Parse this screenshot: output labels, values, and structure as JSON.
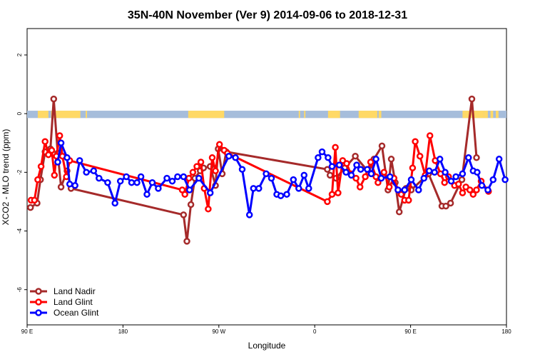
{
  "chart_data": {
    "type": "line",
    "title": "35N-40N November (Ver 9)   2014-09-06 to 2018-12-31",
    "xlabel": "Longitude",
    "ylabel": "XCO2 - MLO trend (ppm)",
    "xlim": [
      90,
      450
    ],
    "ylim": [
      -7.2,
      2.9
    ],
    "x_ticks": [
      90,
      162,
      234,
      306,
      378,
      450
    ],
    "x_tick_labels": [
      "90 E",
      "180",
      "90 W",
      "0",
      "90 E",
      "180"
    ],
    "y_ticks": [
      -6,
      -4,
      -2,
      0,
      2
    ],
    "y_tick_labels": [
      "-6",
      "-4",
      "-2",
      "0",
      "2"
    ],
    "grid": false,
    "legend_position": "bottom-left",
    "land_ocean_strip": {
      "y_range": [
        -0.15,
        0.1
      ],
      "land_color": "#ffd966",
      "ocean_color": "#a6bddb",
      "land_segments": [
        [
          98,
          106
        ],
        [
          108,
          130
        ],
        [
          134,
          135
        ],
        [
          211,
          238
        ],
        [
          294,
          295
        ],
        [
          298,
          299
        ],
        [
          316,
          325
        ],
        [
          339,
          353
        ],
        [
          354,
          356
        ],
        [
          417,
          433
        ],
        [
          433,
          436
        ],
        [
          438,
          440
        ],
        [
          442,
          444
        ]
      ]
    },
    "series": [
      {
        "name": "Land Nadir",
        "color": "#a52a2a",
        "x": [
          92.5,
          97.5,
          100,
          103.5,
          107.5,
          110,
          113,
          115.5,
          120,
          123,
          207.5,
          210,
          213,
          216,
          220,
          222.5,
          227.5,
          231.5,
          233.5,
          236.5,
          239.5,
          315.5,
          317.5,
          322,
          328.5,
          336.5,
          346.5,
          350.5,
          356.5,
          361,
          363.5,
          366.5,
          369.5,
          374.5,
          377.5,
          378.5,
          391.5,
          401.5,
          404.5,
          408,
          416.5,
          424,
          427.5
        ],
        "y": [
          -3.2,
          -3.05,
          -2.25,
          -1.3,
          -1.2,
          0.5,
          -1.35,
          -2.5,
          -1.95,
          -2.55,
          -3.45,
          -4.35,
          -3.1,
          -2.2,
          -1.95,
          -1.85,
          -1.8,
          -2.45,
          -1.2,
          -2.05,
          -1.3,
          -1.9,
          -2.1,
          -2.2,
          -1.85,
          -1.45,
          -2.0,
          -1.55,
          -1.1,
          -2.6,
          -1.55,
          -2.35,
          -3.35,
          -2.55,
          -2.55,
          -2.6,
          -2.05,
          -3.15,
          -3.15,
          -3.05,
          -2.25,
          0.5,
          -1.5
        ]
      },
      {
        "name": "Land Glint",
        "color": "#ff0000",
        "x": [
          93,
          95.5,
          98,
          100.5,
          103.5,
          106,
          108.5,
          110.5,
          112,
          114.5,
          116.5,
          119.5,
          122,
          206.5,
          208.5,
          211.5,
          214.5,
          217.5,
          220.5,
          223,
          226,
          229,
          231.5,
          234.5,
          238,
          240.5,
          315.5,
          319,
          321.5,
          323.5,
          327,
          330,
          333,
          337,
          340,
          344,
          348,
          352,
          353.5,
          355.5,
          358,
          362,
          365.5,
          368.5,
          371,
          373.5,
          376.5,
          379.5,
          381.5,
          385,
          389,
          392.5,
          396.5,
          400.5,
          403.5,
          406.5,
          411,
          414,
          417,
          419.5,
          422.5,
          425,
          427.5,
          431,
          436.5
        ],
        "y": [
          -2.95,
          -2.95,
          -2.25,
          -1.8,
          -0.95,
          -1.4,
          -1.25,
          -2.1,
          -1.45,
          -0.75,
          -1.45,
          -2.15,
          -1.6,
          -2.6,
          -2.75,
          -2.2,
          -2.0,
          -1.8,
          -1.65,
          -2.55,
          -3.25,
          -1.5,
          -1.95,
          -1.05,
          -1.25,
          -1.35,
          -3.0,
          -2.75,
          -1.15,
          -2.7,
          -1.6,
          -1.7,
          -2.05,
          -2.2,
          -2.5,
          -2.15,
          -1.65,
          -2.15,
          -2.35,
          -2.2,
          -2.0,
          -2.5,
          -2.2,
          -2.6,
          -2.75,
          -2.95,
          -2.95,
          -1.85,
          -0.95,
          -1.45,
          -2.1,
          -0.75,
          -1.6,
          -2.05,
          -2.35,
          -2.15,
          -2.45,
          -2.4,
          -2.7,
          -2.5,
          -2.6,
          -2.75,
          -2.6,
          -2.3,
          -2.65
        ]
      },
      {
        "name": "Ocean Glint",
        "color": "#0000ff",
        "x": [
          113,
          115.5,
          120,
          122,
          126,
          129.5,
          134.5,
          140,
          144,
          150.5,
          156,
          160,
          164.5,
          168.5,
          172.5,
          175.5,
          180,
          184,
          188.5,
          195,
          199,
          203,
          207.5,
          212,
          219,
          227.5,
          241.5,
          246.5,
          251.5,
          257,
          260,
          264,
          269.5,
          273.5,
          277.5,
          280.5,
          285,
          290,
          294,
          298,
          301.5,
          308.5,
          311.5,
          316,
          319,
          324.5,
          329.5,
          333.5,
          337.5,
          340.5,
          345.5,
          348.5,
          352,
          356,
          362.5,
          368.5,
          373.5,
          378.5,
          384,
          388,
          392,
          396,
          400,
          404,
          408.5,
          412,
          417,
          421.5,
          425,
          428,
          431.5,
          436,
          440,
          444.5,
          449
        ],
        "y": [
          -1.65,
          -1.0,
          -1.5,
          -2.4,
          -2.45,
          -1.6,
          -2.0,
          -1.95,
          -2.2,
          -2.35,
          -3.05,
          -2.3,
          -2.15,
          -2.35,
          -2.35,
          -2.15,
          -2.75,
          -2.35,
          -2.55,
          -2.2,
          -2.3,
          -2.15,
          -2.15,
          -2.6,
          -2.2,
          -2.7,
          -1.45,
          -1.5,
          -1.9,
          -3.45,
          -2.55,
          -2.55,
          -2.05,
          -2.2,
          -2.75,
          -2.8,
          -2.75,
          -2.25,
          -2.55,
          -2.1,
          -2.55,
          -1.5,
          -1.3,
          -1.5,
          -1.8,
          -1.75,
          -2.0,
          -2.1,
          -1.75,
          -1.9,
          -1.9,
          -2.05,
          -1.55,
          -2.2,
          -2.15,
          -2.6,
          -2.6,
          -2.25,
          -2.6,
          -2.2,
          -1.95,
          -2.0,
          -1.55,
          -2.0,
          -2.3,
          -2.15,
          -2.05,
          -1.5,
          -1.95,
          -2.0,
          -2.45,
          -2.6,
          -2.25,
          -1.55,
          -2.25
        ]
      }
    ]
  }
}
